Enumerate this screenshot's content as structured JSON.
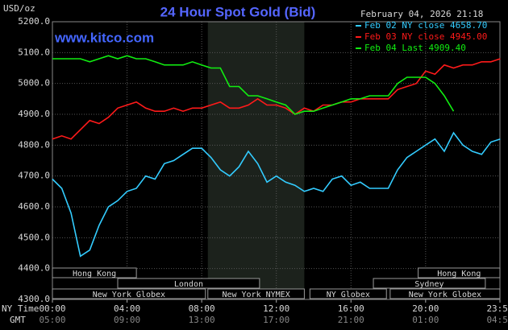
{
  "chart_data": {
    "type": "line",
    "title": "24 Hour Spot Gold (Bid)",
    "y_label": "USD/oz",
    "watermark": "www.kitco.com",
    "timestamp": "February 04, 2026 21:18",
    "x_row_labels": [
      "NY Time",
      "GMT"
    ],
    "x": [
      0,
      0.5,
      1,
      1.5,
      2,
      2.5,
      3,
      3.5,
      4,
      4.5,
      5,
      5.5,
      6,
      6.5,
      7,
      7.5,
      8,
      8.5,
      9,
      9.5,
      10,
      10.5,
      11,
      11.5,
      12,
      12.5,
      13,
      13.5,
      14,
      14.5,
      15,
      15.5,
      16,
      16.5,
      17,
      17.5,
      18,
      18.5,
      19,
      19.5,
      20,
      20.5,
      21,
      21.5,
      22,
      22.5,
      23,
      23.5,
      24
    ],
    "series": [
      {
        "name": "Feb 02 NY close 4658.70",
        "color": "#33ccff",
        "values": [
          4690,
          4660,
          4580,
          4440,
          4460,
          4540,
          4600,
          4620,
          4650,
          4660,
          4700,
          4690,
          4740,
          4750,
          4770,
          4790,
          4790,
          4760,
          4720,
          4700,
          4730,
          4780,
          4740,
          4680,
          4700,
          4680,
          4670,
          4650,
          4660,
          4650,
          4690,
          4700,
          4670,
          4680,
          4660,
          4660,
          4660,
          4720,
          4760,
          4780,
          4800,
          4820,
          4780,
          4840,
          4800,
          4780,
          4770,
          4810,
          4820
        ]
      },
      {
        "name": "Feb 03 NY close 4945.00",
        "color": "#ff1a1a",
        "values": [
          4820,
          4830,
          4820,
          4850,
          4880,
          4870,
          4890,
          4920,
          4930,
          4940,
          4920,
          4910,
          4910,
          4920,
          4910,
          4920,
          4920,
          4930,
          4940,
          4920,
          4920,
          4930,
          4950,
          4930,
          4930,
          4920,
          4900,
          4920,
          4910,
          4930,
          4930,
          4940,
          4940,
          4950,
          4950,
          4950,
          4950,
          4980,
          4990,
          5000,
          5040,
          5030,
          5060,
          5050,
          5060,
          5060,
          5070,
          5070,
          5080
        ]
      },
      {
        "name": "Feb 04 Last 4909.40",
        "color": "#11ee11",
        "values": [
          5080,
          5080,
          5080,
          5080,
          5070,
          5080,
          5090,
          5080,
          5090,
          5080,
          5080,
          5070,
          5060,
          5060,
          5060,
          5070,
          5060,
          5050,
          5050,
          4990,
          4990,
          4960,
          4960,
          4950,
          4940,
          4930,
          4900,
          4910,
          4910,
          4920,
          4930,
          4940,
          4950,
          4950,
          4960,
          4960,
          4960,
          5000,
          5020,
          5020,
          5020,
          5000,
          4960,
          4910,
          null,
          null,
          null,
          null,
          null
        ]
      }
    ],
    "xlim": [
      0,
      23.983
    ],
    "xticks": [
      {
        "value": 0,
        "label": "00:00"
      },
      {
        "value": 4,
        "label": "04:00"
      },
      {
        "value": 8,
        "label": "08:00"
      },
      {
        "value": 12,
        "label": "12:00"
      },
      {
        "value": 16,
        "label": "16:00"
      },
      {
        "value": 20,
        "label": "20:00"
      },
      {
        "value": 23.983,
        "label": "23:59"
      }
    ],
    "gmt_ticks": [
      {
        "value": 0,
        "label": "05:00"
      },
      {
        "value": 4,
        "label": "09:00"
      },
      {
        "value": 8,
        "label": "13:00"
      },
      {
        "value": 12,
        "label": "17:00"
      },
      {
        "value": 16,
        "label": "21:00"
      },
      {
        "value": 20,
        "label": "01:00"
      },
      {
        "value": 23.983,
        "label": "04:59"
      }
    ],
    "ylim": [
      4300,
      5200
    ],
    "yticks": [
      {
        "value": 4300,
        "label": "4300.0"
      },
      {
        "value": 4400,
        "label": "4400.0"
      },
      {
        "value": 4500,
        "label": "4500.0"
      },
      {
        "value": 4600,
        "label": "4600.0"
      },
      {
        "value": 4700,
        "label": "4700.0"
      },
      {
        "value": 4800,
        "label": "4800.0"
      },
      {
        "value": 4900,
        "label": "4900.0"
      },
      {
        "value": 5000,
        "label": "5000.0"
      },
      {
        "value": 5100,
        "label": "5100.0"
      },
      {
        "value": 5200,
        "label": "5200.0"
      }
    ],
    "grid": true,
    "shade": {
      "start": 8.33,
      "end": 13.5
    },
    "sessions": [
      {
        "label": "Hong Kong",
        "start": 0,
        "end": 4.5
      },
      {
        "label": "London",
        "start": 3.5,
        "end": 11.1
      },
      {
        "label": "New York Globex",
        "start": 0,
        "end": 8.2
      },
      {
        "label": "New York NYMEX",
        "start": 8.33,
        "end": 13.5
      },
      {
        "label": "NY Globex",
        "start": 13.8,
        "end": 17.9
      },
      {
        "label": "Sydney",
        "start": 17.2,
        "end": 23.2
      },
      {
        "label": "Hong Kong",
        "start": 19.6,
        "end": 23.983
      },
      {
        "label": "New York Globex",
        "start": 18.1,
        "end": 23.983
      }
    ]
  }
}
